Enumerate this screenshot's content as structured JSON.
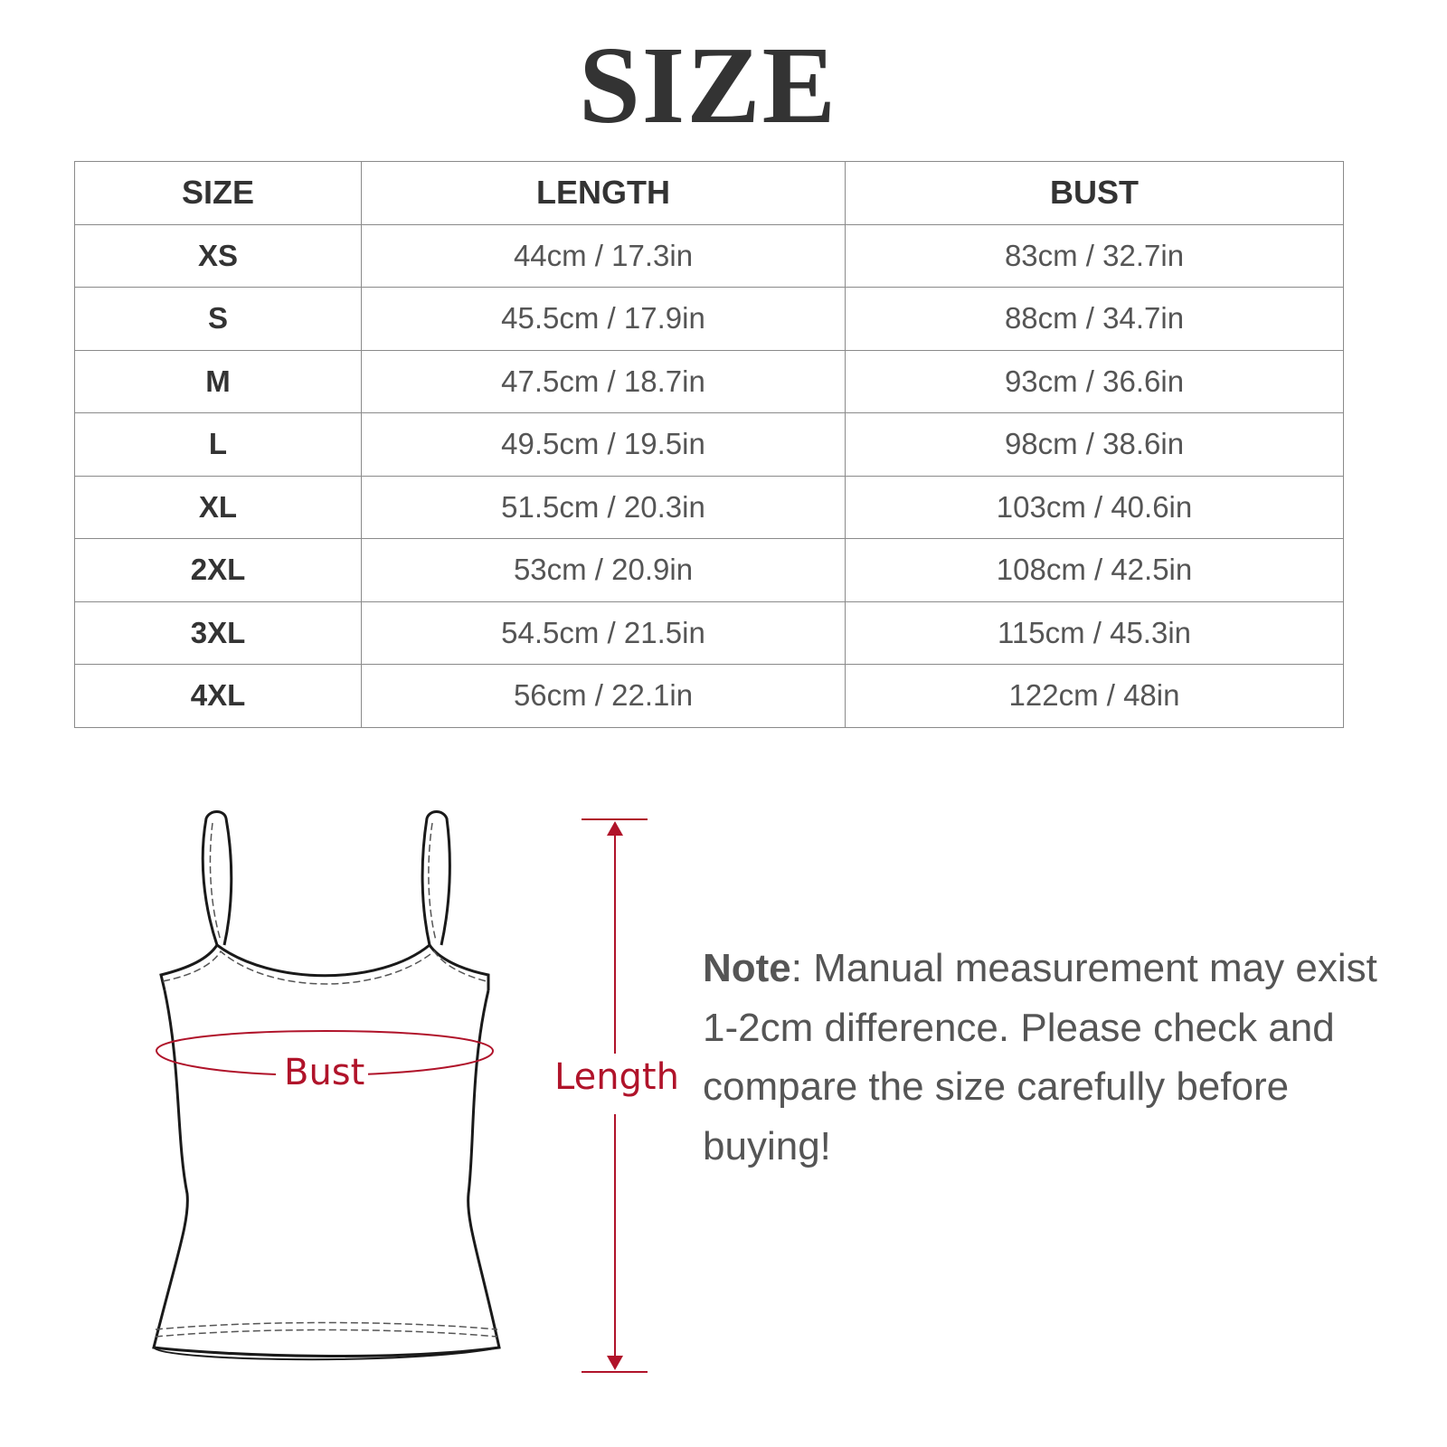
{
  "title": "SIZE",
  "table": {
    "headers": [
      "SIZE",
      "LENGTH",
      "BUST"
    ],
    "rows": [
      {
        "size": "XS",
        "length": "44cm / 17.3in",
        "bust": "83cm / 32.7in"
      },
      {
        "size": "S",
        "length": "45.5cm / 17.9in",
        "bust": "88cm / 34.7in"
      },
      {
        "size": "M",
        "length": "47.5cm / 18.7in",
        "bust": "93cm / 36.6in"
      },
      {
        "size": "L",
        "length": "49.5cm / 19.5in",
        "bust": "98cm / 38.6in"
      },
      {
        "size": "XL",
        "length": "51.5cm / 20.3in",
        "bust": "103cm / 40.6in"
      },
      {
        "size": "2XL",
        "length": "53cm / 20.9in",
        "bust": "108cm / 42.5in"
      },
      {
        "size": "3XL",
        "length": "54.5cm / 21.5in",
        "bust": "115cm / 45.3in"
      },
      {
        "size": "4XL",
        "length": "56cm / 22.1in",
        "bust": "122cm / 48in"
      }
    ]
  },
  "diagram": {
    "bust_label": "Bust",
    "length_label": "Length",
    "accent_color": "#b0132a"
  },
  "note": {
    "label": "Note",
    "text": ": Manual measurement may exist 1-2cm difference. Please check and compare the size carefully before buying!"
  }
}
